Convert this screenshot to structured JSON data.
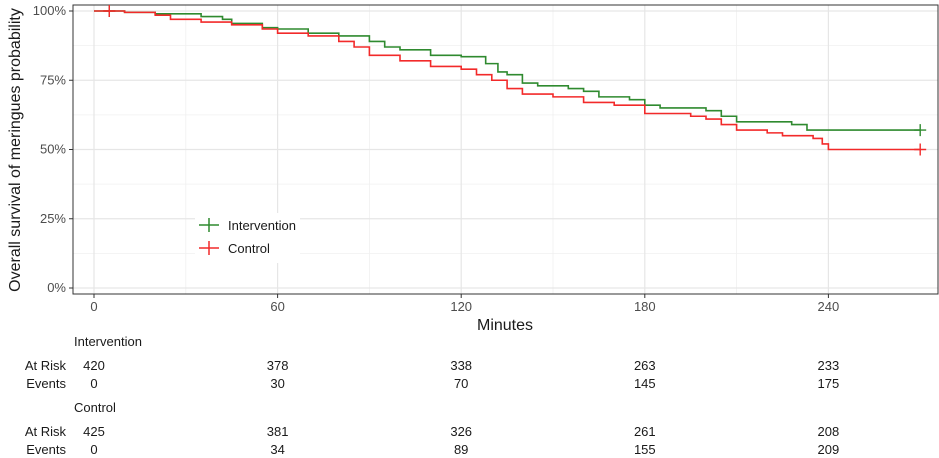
{
  "chart_data": {
    "type": "line",
    "subtype": "kaplan-meier",
    "title": "",
    "xlabel": "Minutes",
    "ylabel": "Overall survival of meringues probability",
    "xlim": [
      0,
      270
    ],
    "ylim": [
      0,
      100
    ],
    "xticks": [
      0,
      60,
      120,
      180,
      240
    ],
    "yticks": [
      0,
      25,
      50,
      75,
      100
    ],
    "ytick_labels": [
      "0%",
      "25%",
      "50%",
      "75%",
      "100%"
    ],
    "grid": true,
    "legend": {
      "placement": "left-bottom-inside",
      "entries": [
        "Intervention",
        "Control"
      ]
    },
    "series": [
      {
        "name": "Intervention",
        "color": "#2f8a2f",
        "censor_marks": [
          5,
          270
        ],
        "points": [
          [
            0,
            100
          ],
          [
            10,
            99.5
          ],
          [
            20,
            99
          ],
          [
            35,
            98
          ],
          [
            42,
            97
          ],
          [
            45,
            95.5
          ],
          [
            55,
            94
          ],
          [
            60,
            93.5
          ],
          [
            70,
            92
          ],
          [
            80,
            91
          ],
          [
            90,
            89
          ],
          [
            95,
            87
          ],
          [
            100,
            86
          ],
          [
            110,
            84
          ],
          [
            120,
            83.5
          ],
          [
            128,
            81
          ],
          [
            132,
            78
          ],
          [
            135,
            77
          ],
          [
            140,
            74
          ],
          [
            145,
            73
          ],
          [
            155,
            72
          ],
          [
            160,
            71
          ],
          [
            165,
            69
          ],
          [
            175,
            68
          ],
          [
            180,
            66
          ],
          [
            185,
            65
          ],
          [
            200,
            64
          ],
          [
            205,
            62
          ],
          [
            210,
            60
          ],
          [
            228,
            59
          ],
          [
            233,
            57
          ],
          [
            270,
            57
          ]
        ]
      },
      {
        "name": "Control",
        "color": "#f22a2a",
        "censor_marks": [
          5,
          270
        ],
        "points": [
          [
            0,
            100
          ],
          [
            10,
            99.5
          ],
          [
            20,
            98.5
          ],
          [
            25,
            97
          ],
          [
            35,
            96
          ],
          [
            45,
            95
          ],
          [
            55,
            93.5
          ],
          [
            60,
            92
          ],
          [
            70,
            91
          ],
          [
            80,
            89
          ],
          [
            85,
            87
          ],
          [
            90,
            84
          ],
          [
            100,
            82
          ],
          [
            110,
            80
          ],
          [
            120,
            79
          ],
          [
            125,
            77
          ],
          [
            130,
            75
          ],
          [
            135,
            72
          ],
          [
            140,
            70
          ],
          [
            150,
            69
          ],
          [
            160,
            67
          ],
          [
            170,
            66
          ],
          [
            180,
            63
          ],
          [
            195,
            62
          ],
          [
            200,
            61
          ],
          [
            205,
            59
          ],
          [
            210,
            57
          ],
          [
            220,
            56
          ],
          [
            225,
            55
          ],
          [
            235,
            54
          ],
          [
            238,
            52
          ],
          [
            240,
            50
          ],
          [
            270,
            50
          ]
        ]
      }
    ],
    "risk_table": {
      "row_labels": [
        "At Risk",
        "Events"
      ],
      "times": [
        0,
        60,
        120,
        180,
        240
      ],
      "groups": [
        {
          "name": "Intervention",
          "at_risk": [
            420,
            378,
            338,
            263,
            233
          ],
          "events": [
            0,
            30,
            70,
            145,
            175
          ]
        },
        {
          "name": "Control",
          "at_risk": [
            425,
            381,
            326,
            261,
            208
          ],
          "events": [
            0,
            34,
            89,
            155,
            209
          ]
        }
      ]
    }
  }
}
